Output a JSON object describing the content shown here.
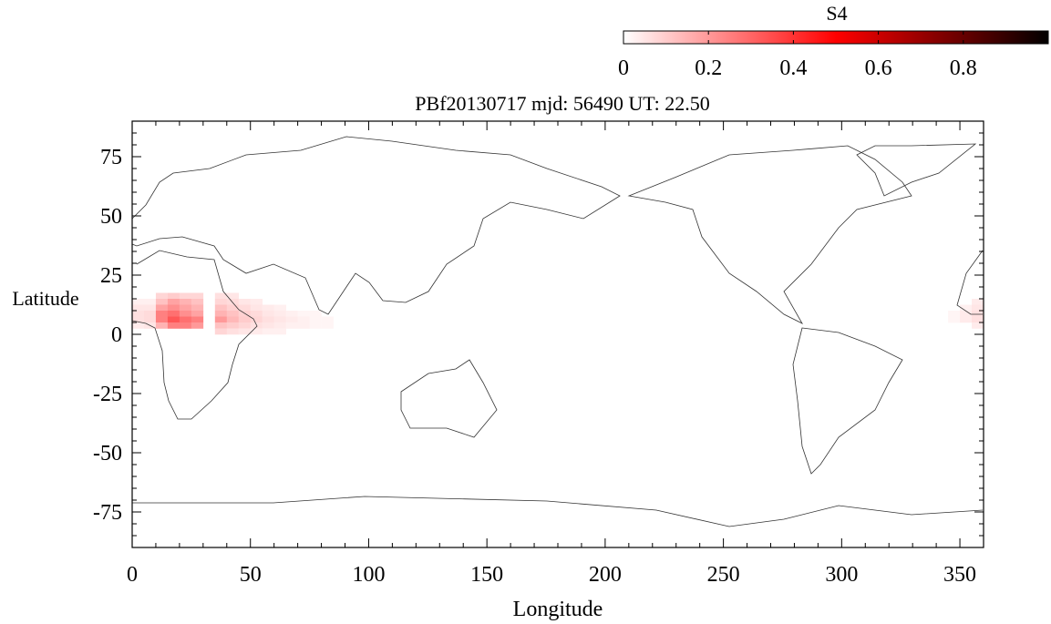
{
  "chart_data": {
    "type": "heatmap",
    "title": "PBf20130717  mjd: 56490  UT:  22.50",
    "xlabel": "Longitude",
    "ylabel": "Latitude",
    "xlim": [
      0,
      360
    ],
    "ylim": [
      -90,
      90
    ],
    "xticks": [
      "0",
      "50",
      "100",
      "150",
      "200",
      "250",
      "300",
      "350"
    ],
    "xtick_values": [
      0,
      50,
      100,
      150,
      200,
      250,
      300,
      350
    ],
    "yticks": [
      "75",
      "50",
      "25",
      "0",
      "-25",
      "-50",
      "-75"
    ],
    "ytick_values": [
      75,
      50,
      25,
      0,
      -25,
      -50,
      -75
    ],
    "colorbar": {
      "label": "S4",
      "range": [
        0,
        1
      ],
      "ticks": [
        "0",
        "0.2",
        "0.4",
        "0.6",
        "0.8"
      ],
      "tick_values": [
        0,
        0.2,
        0.4,
        0.6,
        0.8
      ],
      "colors": [
        "#ffffff",
        "#ff0000",
        "#000000"
      ]
    },
    "cell_size": {
      "lon": 5,
      "lat": 2.5
    },
    "cells": [
      [
        0,
        12.5,
        0.03
      ],
      [
        0,
        10,
        0.05
      ],
      [
        0,
        7.5,
        0.06
      ],
      [
        0,
        5,
        0.06
      ],
      [
        0,
        2.5,
        0.04
      ],
      [
        5,
        12.5,
        0.03
      ],
      [
        5,
        10,
        0.05
      ],
      [
        5,
        7.5,
        0.07
      ],
      [
        5,
        5,
        0.07
      ],
      [
        5,
        2.5,
        0.05
      ],
      [
        10,
        15,
        0.08
      ],
      [
        10,
        12.5,
        0.12
      ],
      [
        10,
        10,
        0.18
      ],
      [
        10,
        7.5,
        0.25
      ],
      [
        10,
        5,
        0.25
      ],
      [
        10,
        2.5,
        0.15
      ],
      [
        15,
        15,
        0.1
      ],
      [
        15,
        12.5,
        0.18
      ],
      [
        15,
        10,
        0.22
      ],
      [
        15,
        7.5,
        0.28
      ],
      [
        15,
        5,
        0.33
      ],
      [
        15,
        2.5,
        0.25
      ],
      [
        20,
        15,
        0.08
      ],
      [
        20,
        12.5,
        0.15
      ],
      [
        20,
        10,
        0.18
      ],
      [
        20,
        7.5,
        0.22
      ],
      [
        20,
        5,
        0.28
      ],
      [
        20,
        2.5,
        0.25
      ],
      [
        25,
        15,
        0.08
      ],
      [
        25,
        12.5,
        0.12
      ],
      [
        25,
        10,
        0.15
      ],
      [
        25,
        7.5,
        0.18
      ],
      [
        25,
        5,
        0.25
      ],
      [
        25,
        2.5,
        0.2
      ],
      [
        35,
        15,
        0.06
      ],
      [
        35,
        12.5,
        0.08
      ],
      [
        35,
        10,
        0.12
      ],
      [
        35,
        7.5,
        0.15
      ],
      [
        35,
        5,
        0.2
      ],
      [
        35,
        2.5,
        0.12
      ],
      [
        35,
        0,
        0.08
      ],
      [
        40,
        15,
        0.05
      ],
      [
        40,
        12.5,
        0.07
      ],
      [
        40,
        10,
        0.09
      ],
      [
        40,
        7.5,
        0.12
      ],
      [
        40,
        5,
        0.14
      ],
      [
        40,
        2.5,
        0.1
      ],
      [
        40,
        0,
        0.06
      ],
      [
        45,
        12.5,
        0.05
      ],
      [
        45,
        10,
        0.07
      ],
      [
        45,
        7.5,
        0.09
      ],
      [
        45,
        5,
        0.1
      ],
      [
        45,
        2.5,
        0.08
      ],
      [
        45,
        0,
        0.05
      ],
      [
        50,
        12.5,
        0.04
      ],
      [
        50,
        10,
        0.05
      ],
      [
        50,
        7.5,
        0.07
      ],
      [
        50,
        5,
        0.08
      ],
      [
        50,
        2.5,
        0.06
      ],
      [
        50,
        0,
        0.04
      ],
      [
        55,
        10,
        0.04
      ],
      [
        55,
        7.5,
        0.05
      ],
      [
        55,
        5,
        0.06
      ],
      [
        55,
        2.5,
        0.05
      ],
      [
        55,
        0,
        0.03
      ],
      [
        60,
        10,
        0.03
      ],
      [
        60,
        7.5,
        0.04
      ],
      [
        60,
        5,
        0.05
      ],
      [
        60,
        2.5,
        0.04
      ],
      [
        60,
        0,
        0.03
      ],
      [
        65,
        7.5,
        0.03
      ],
      [
        65,
        5,
        0.04
      ],
      [
        65,
        2.5,
        0.03
      ],
      [
        70,
        7.5,
        0.02
      ],
      [
        70,
        5,
        0.03
      ],
      [
        70,
        2.5,
        0.03
      ],
      [
        75,
        7.5,
        0.02
      ],
      [
        75,
        5,
        0.02
      ],
      [
        75,
        2.5,
        0.02
      ],
      [
        80,
        5,
        0.02
      ],
      [
        80,
        2.5,
        0.02
      ],
      [
        345,
        7.5,
        0.02
      ],
      [
        345,
        5,
        0.02
      ],
      [
        350,
        10,
        0.03
      ],
      [
        350,
        7.5,
        0.04
      ],
      [
        350,
        5,
        0.04
      ],
      [
        355,
        12.5,
        0.04
      ],
      [
        355,
        10,
        0.05
      ],
      [
        355,
        7.5,
        0.06
      ],
      [
        355,
        5,
        0.06
      ],
      [
        355,
        2.5,
        0.04
      ]
    ]
  }
}
